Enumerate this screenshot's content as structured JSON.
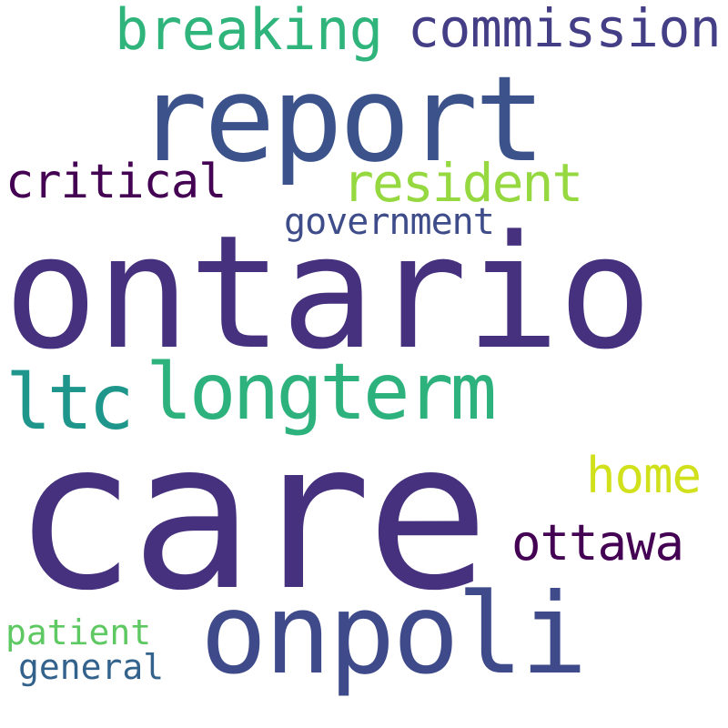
{
  "words": {
    "care": {
      "text": "care",
      "color": "#46317e"
    },
    "ontario": {
      "text": "ontario",
      "color": "#46317e"
    },
    "report": {
      "text": "report",
      "color": "#3b528b"
    },
    "onpoli": {
      "text": "onpoli",
      "color": "#3e4a89"
    },
    "longterm": {
      "text": "longterm",
      "color": "#2db27d"
    },
    "ltc": {
      "text": "ltc",
      "color": "#1f968b"
    },
    "commission": {
      "text": "commission",
      "color": "#433e85"
    },
    "breaking": {
      "text": "breaking",
      "color": "#2fb47c"
    },
    "resident": {
      "text": "resident",
      "color": "#95d840"
    },
    "ottawa": {
      "text": "ottawa",
      "color": "#440154"
    },
    "home": {
      "text": "home",
      "color": "#d0e11c"
    },
    "critical": {
      "text": "critical",
      "color": "#440154"
    },
    "government": {
      "text": "government",
      "color": "#3e4c8a"
    },
    "patient": {
      "text": "patient",
      "color": "#5ec962"
    },
    "general": {
      "text": "general",
      "color": "#33638d"
    }
  }
}
